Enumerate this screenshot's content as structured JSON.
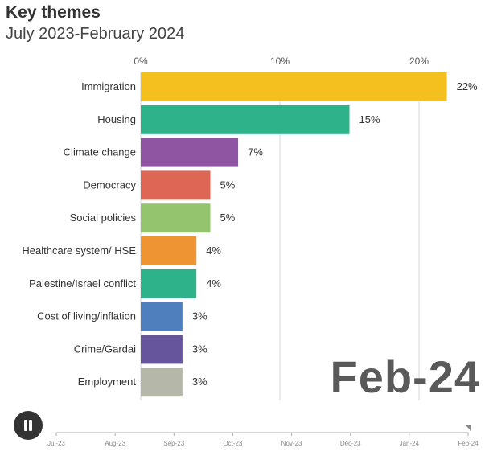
{
  "header": {
    "title": "Key themes",
    "subtitle": "July 2023-February 2024"
  },
  "current_period": "Feb-24",
  "controls": {
    "pause_icon": "pause-icon"
  },
  "timeline": {
    "labels": [
      "Jul-23",
      "Aug-23",
      "Sep-23",
      "Oct-23",
      "Nov-23",
      "Dec-23",
      "Jan-24",
      "Feb-24"
    ],
    "current": "Feb-24"
  },
  "chart_data": {
    "type": "bar",
    "orientation": "horizontal",
    "title": "Key themes",
    "subtitle": "July 2023-February 2024",
    "xlim": [
      0,
      25
    ],
    "x_ticks": [
      0,
      10,
      20
    ],
    "x_tick_labels": [
      "0%",
      "10%",
      "20%"
    ],
    "x_axis_position": "top",
    "grid": true,
    "categories": [
      "Immigration",
      "Housing",
      "Climate change",
      "Democracy",
      "Social policies",
      "Healthcare system/ HSE",
      "Palestine/Israel conflict",
      "Cost of living/inflation",
      "Crime/Gardai",
      "Employment"
    ],
    "values": [
      22,
      15,
      7,
      5,
      5,
      4,
      4,
      3,
      3,
      3
    ],
    "value_labels": [
      "22%",
      "15%",
      "7%",
      "5%",
      "5%",
      "4%",
      "4%",
      "3%",
      "3%",
      "3%"
    ],
    "colors": [
      "#f4c020",
      "#2db28a",
      "#8f55a3",
      "#dd6655",
      "#95c46f",
      "#ee9433",
      "#2db28a",
      "#4f7fbd",
      "#66559c",
      "#b5b8a8"
    ]
  }
}
